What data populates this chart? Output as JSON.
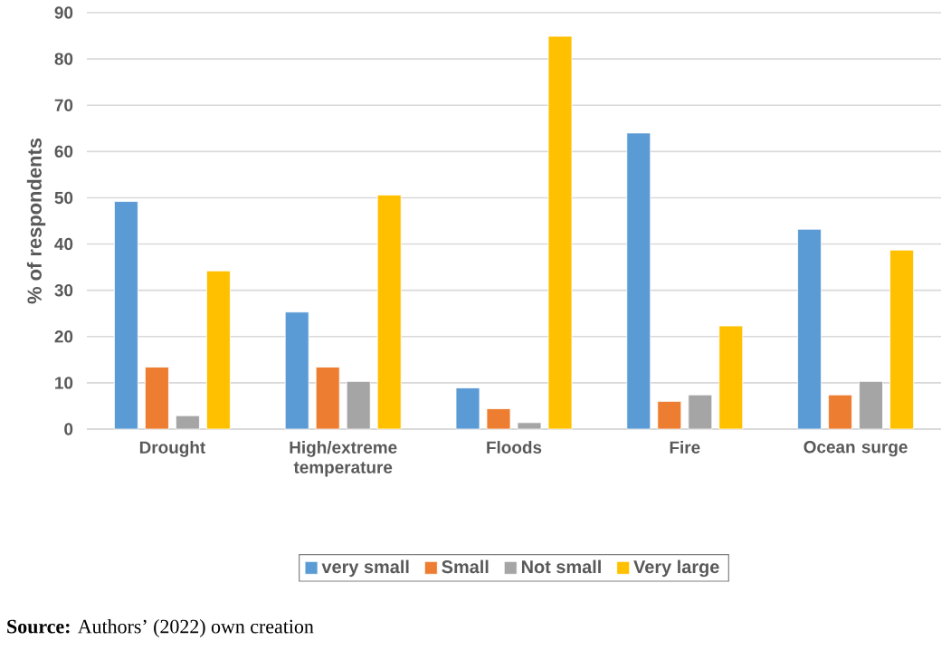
{
  "chart_data": {
    "type": "bar",
    "ylabel": "% of respondents",
    "categories": [
      "Drought",
      "High/extreme temperature",
      "Floods",
      "Fire",
      "Ocean surge"
    ],
    "series": [
      {
        "name": "very small",
        "color": "#5b9bd5",
        "values": [
          49.2,
          25.3,
          8.9,
          64.0,
          43.2
        ]
      },
      {
        "name": "Small",
        "color": "#ed7d31",
        "values": [
          13.4,
          13.4,
          4.4,
          6.0,
          7.4
        ]
      },
      {
        "name": "Not small",
        "color": "#a5a5a5",
        "values": [
          2.9,
          10.3,
          1.4,
          7.4,
          10.3
        ]
      },
      {
        "name": "Very large",
        "color": "#ffc000",
        "values": [
          34.2,
          50.6,
          84.9,
          22.3,
          38.7
        ]
      }
    ],
    "ylim": [
      0,
      90
    ],
    "yticks": [
      0,
      10,
      20,
      30,
      40,
      50,
      60,
      70,
      80,
      90
    ],
    "grid": "y",
    "legend": "bottom",
    "annotations": [
      "**Source:** Authors’ (2022) own creation"
    ]
  }
}
